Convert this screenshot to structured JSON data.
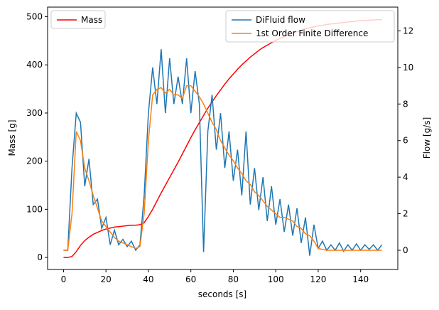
{
  "chart_data": {
    "type": "line",
    "xlabel": "seconds [s]",
    "ylabel": "Mass [g]",
    "y2label": "Flow [g/s]",
    "x": [
      0,
      2,
      4,
      6,
      8,
      10,
      12,
      14,
      16,
      18,
      20,
      22,
      24,
      26,
      28,
      30,
      32,
      34,
      36,
      38,
      40,
      42,
      44,
      46,
      48,
      50,
      52,
      54,
      56,
      58,
      60,
      62,
      64,
      66,
      68,
      70,
      72,
      74,
      76,
      78,
      80,
      82,
      84,
      86,
      88,
      90,
      92,
      94,
      96,
      98,
      100,
      102,
      104,
      106,
      108,
      110,
      112,
      114,
      116,
      118,
      120,
      122,
      124,
      126,
      128,
      130,
      132,
      134,
      136,
      138,
      140,
      142,
      144,
      146,
      148,
      150
    ],
    "xlim": [
      -7.5,
      157.5
    ],
    "xticks": [
      0,
      20,
      40,
      60,
      80,
      100,
      120,
      140
    ],
    "ylim": [
      -25,
      520
    ],
    "yticks": [
      0,
      100,
      200,
      300,
      400,
      500
    ],
    "y2lim": [
      -1.05,
      13.3
    ],
    "y2ticks": [
      0,
      2,
      4,
      6,
      8,
      10,
      12
    ],
    "legend": "upper left",
    "y2legend": "upper right",
    "series": [
      {
        "name": "Mass",
        "color": "#ff0000",
        "axis": "y",
        "values": [
          0,
          0,
          2,
          12,
          25,
          35,
          42,
          48,
          52,
          56,
          59,
          61,
          63,
          64,
          65,
          66,
          67,
          67,
          68,
          72,
          85,
          100,
          117,
          134,
          150,
          166,
          182,
          198,
          215,
          232,
          249,
          265,
          280,
          295,
          310,
          323,
          336,
          348,
          360,
          371,
          381,
          391,
          400,
          408,
          416,
          423,
          430,
          436,
          441,
          446,
          451,
          455,
          459,
          463,
          466,
          469,
          472,
          475,
          477,
          479,
          481,
          482,
          484,
          485,
          486,
          487,
          488,
          489,
          490,
          491,
          492,
          492,
          493,
          493,
          494,
          494
        ]
      },
      {
        "name": "DiFluid flow",
        "color": "#1f77b4",
        "axis": "y2",
        "values": [
          0,
          0,
          4.5,
          7.5,
          7,
          3.5,
          5,
          2.5,
          2.8,
          1.2,
          1.8,
          0.3,
          1.1,
          0.3,
          0.6,
          0.2,
          0.5,
          0,
          0.3,
          3,
          7.5,
          10,
          8,
          11,
          7.5,
          10.5,
          8,
          9.5,
          8,
          10.5,
          7.5,
          9.8,
          8,
          -0.1,
          6.5,
          8.5,
          5.5,
          7.5,
          4.5,
          6.5,
          3.8,
          5.5,
          3,
          6.5,
          2.5,
          4.5,
          2.2,
          4,
          1.6,
          3.5,
          1.4,
          2.8,
          1,
          2.5,
          0.8,
          2.3,
          0.4,
          1.8,
          -0.3,
          1.4,
          0.1,
          0.5,
          0,
          0.3,
          0,
          0.4,
          -0.05,
          0.3,
          0,
          0.35,
          0,
          0.3,
          0.05,
          0.3,
          0,
          0.3
        ]
      },
      {
        "name": "1st Order Finite Difference",
        "color": "#ff7f0e",
        "axis": "y2",
        "values": [
          0,
          0,
          2,
          6.5,
          6,
          4.5,
          3.8,
          3,
          2.3,
          1.6,
          1.3,
          1,
          0.7,
          0.5,
          0.4,
          0.3,
          0.2,
          0.1,
          0.2,
          2,
          6,
          8.5,
          8.8,
          8.9,
          8.6,
          8.8,
          8.5,
          8.5,
          8.3,
          9,
          9,
          8.7,
          8.4,
          8,
          7.5,
          7,
          6.6,
          6,
          5.6,
          5.2,
          4.9,
          4.5,
          4.2,
          3.8,
          3.6,
          3.2,
          3,
          2.7,
          2.4,
          2.2,
          2,
          1.8,
          1.8,
          1.7,
          1.6,
          1.3,
          1.2,
          0.9,
          0.8,
          0.5,
          0.1,
          0.05,
          0,
          0,
          0,
          0,
          0,
          0,
          0,
          0,
          0,
          0,
          0,
          0,
          0,
          0
        ]
      }
    ]
  }
}
